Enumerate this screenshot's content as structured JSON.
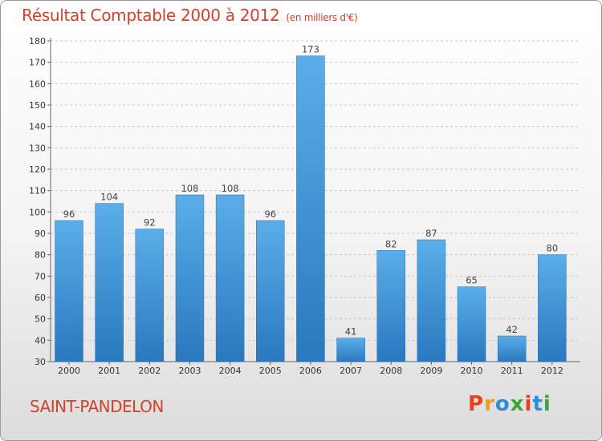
{
  "chart_data": {
    "type": "bar",
    "title": "Résultat Comptable 2000 à 2012",
    "unit": "(en milliers d'€)",
    "categories": [
      "2000",
      "2001",
      "2002",
      "2003",
      "2004",
      "2005",
      "2006",
      "2007",
      "2008",
      "2009",
      "2010",
      "2011",
      "2012"
    ],
    "values": [
      96,
      104,
      92,
      108,
      108,
      96,
      173,
      41,
      82,
      87,
      65,
      42,
      80
    ],
    "ylim": [
      30,
      180
    ],
    "yticks": [
      30,
      40,
      50,
      60,
      70,
      80,
      90,
      100,
      110,
      120,
      130,
      140,
      150,
      160,
      170,
      180
    ],
    "grid": "horizontal-dashed",
    "bar_color": "#3f8fd2"
  },
  "footer": {
    "town": "SAINT-PANDELON",
    "logo": [
      "P",
      "r",
      "o",
      "x",
      "i",
      "t",
      "i"
    ],
    "logo_colors": [
      "#e8401c",
      "#f29a1d",
      "#2b8ed6",
      "#3aa635",
      "#e8401c",
      "#2b8ed6",
      "#3aa635"
    ]
  }
}
